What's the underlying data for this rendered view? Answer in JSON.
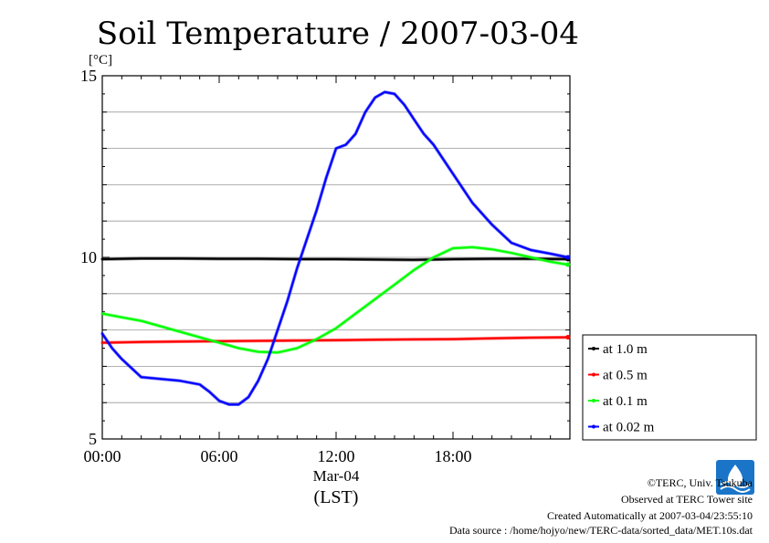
{
  "chart_data": {
    "type": "line",
    "title": "Soil Temperature / 2007-03-04",
    "ylabel": "[°C]",
    "xlabel": "(LST)",
    "x_date_label": "Mar-04",
    "ylim": [
      5,
      15
    ],
    "yticks": [
      5,
      10,
      15
    ],
    "xlim": [
      0,
      24
    ],
    "xticks": [
      {
        "value": 0,
        "label": "00:00"
      },
      {
        "value": 6,
        "label": "06:00"
      },
      {
        "value": 12,
        "label": "12:00"
      },
      {
        "value": 18,
        "label": "18:00"
      }
    ],
    "grid": true,
    "legend_position": "right",
    "series": [
      {
        "name": "at 1.0 m",
        "color": "#000000",
        "x": [
          0,
          2,
          4,
          6,
          8,
          10,
          12,
          14,
          16,
          18,
          20,
          22,
          23.9
        ],
        "y": [
          9.95,
          9.97,
          9.97,
          9.96,
          9.96,
          9.95,
          9.95,
          9.94,
          9.93,
          9.95,
          9.96,
          9.96,
          9.95
        ]
      },
      {
        "name": "at 0.5 m",
        "color": "#ff0000",
        "x": [
          0,
          2,
          4,
          6,
          8,
          10,
          12,
          14,
          16,
          18,
          20,
          22,
          23.9
        ],
        "y": [
          7.65,
          7.67,
          7.68,
          7.69,
          7.7,
          7.71,
          7.72,
          7.73,
          7.74,
          7.75,
          7.77,
          7.79,
          7.8
        ]
      },
      {
        "name": "at 0.1 m",
        "color": "#00ff00",
        "x": [
          0,
          1,
          2,
          3,
          4,
          5,
          6,
          7,
          8,
          9,
          10,
          11,
          12,
          13,
          14,
          15,
          16,
          17,
          18,
          19,
          20,
          21,
          22,
          23,
          23.9
        ],
        "y": [
          8.45,
          8.35,
          8.25,
          8.1,
          7.95,
          7.8,
          7.65,
          7.5,
          7.4,
          7.38,
          7.5,
          7.75,
          8.05,
          8.45,
          8.85,
          9.25,
          9.65,
          10.0,
          10.25,
          10.28,
          10.22,
          10.12,
          10.0,
          9.88,
          9.8
        ]
      },
      {
        "name": "at 0.02 m",
        "color": "#0000ff",
        "x": [
          0,
          0.5,
          1,
          1.5,
          2,
          3,
          4,
          5,
          5.5,
          6,
          6.5,
          7,
          7.5,
          8,
          8.5,
          9,
          9.5,
          10,
          10.5,
          11,
          11.5,
          12,
          12.5,
          13,
          13.5,
          14,
          14.5,
          15,
          15.5,
          16,
          16.5,
          17,
          18,
          19,
          20,
          21,
          22,
          23,
          23.9
        ],
        "y": [
          7.9,
          7.5,
          7.2,
          6.95,
          6.7,
          6.65,
          6.6,
          6.5,
          6.3,
          6.05,
          5.95,
          5.95,
          6.15,
          6.6,
          7.2,
          8.0,
          8.8,
          9.7,
          10.5,
          11.3,
          12.2,
          13.0,
          13.1,
          13.4,
          14.0,
          14.4,
          14.55,
          14.5,
          14.2,
          13.8,
          13.4,
          13.1,
          12.3,
          11.5,
          10.9,
          10.4,
          10.2,
          10.1,
          10.0
        ]
      }
    ]
  },
  "footer": {
    "copyright": "©TERC, Univ. Tsukuba",
    "observed": "Observed at TERC Tower site",
    "created": "Created Automatically at 2007-03-04/23:55:10",
    "source": "Data source : /home/hojyo/new/TERC-data/sorted_data/MET.10s.dat"
  },
  "logo": {
    "text": "TERC",
    "color": "#1a75c9",
    "icon": "terc-logo-icon"
  }
}
